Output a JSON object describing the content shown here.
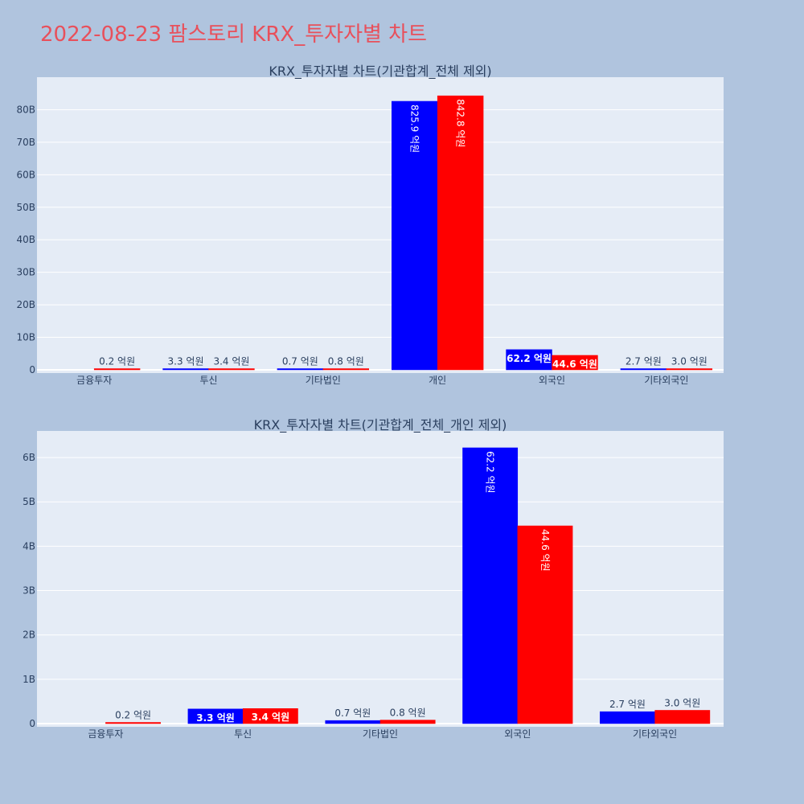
{
  "page": {
    "title": "2022-08-23 팜스토리 KRX_투자자별 차트",
    "title_color": "#e8505b",
    "background": "#b0c4de",
    "plot_background": "#e5ecf6"
  },
  "chart_data": [
    {
      "type": "bar",
      "title": "KRX_투자자별 차트(기관합계_전체 제외)",
      "categories": [
        "금융투자",
        "투신",
        "기타법인",
        "개인",
        "외국인",
        "기타외국인"
      ],
      "ylim": [
        0,
        90
      ],
      "yticks": [
        0,
        10,
        20,
        30,
        40,
        50,
        60,
        70,
        80
      ],
      "ytick_labels": [
        "0",
        "10B",
        "20B",
        "30B",
        "40B",
        "50B",
        "60B",
        "70B",
        "80B"
      ],
      "grid": true,
      "series": [
        {
          "color": "#0000ff",
          "values": [
            0,
            0.33,
            0.07,
            82.59,
            6.22,
            0.27
          ],
          "labels": [
            "",
            "3.3 억원",
            "0.7 억원",
            "825.9 억원",
            "62.2 억원",
            "2.7 억원"
          ]
        },
        {
          "color": "#ff0000",
          "values": [
            0.02,
            0.34,
            0.08,
            84.28,
            4.46,
            0.3
          ],
          "labels": [
            "0.2 억원",
            "3.4 억원",
            "0.8 억원",
            "842.8 억원",
            "44.6 억원",
            "3.0 억원"
          ]
        }
      ]
    },
    {
      "type": "bar",
      "title": "KRX_투자자별 차트(기관합계_전체_개인 제외)",
      "categories": [
        "금융투자",
        "투신",
        "기타법인",
        "외국인",
        "기타외국인"
      ],
      "ylim": [
        0,
        6.6
      ],
      "yticks": [
        0,
        1,
        2,
        3,
        4,
        5,
        6
      ],
      "ytick_labels": [
        "0",
        "1B",
        "2B",
        "3B",
        "4B",
        "5B",
        "6B"
      ],
      "grid": true,
      "series": [
        {
          "color": "#0000ff",
          "values": [
            0,
            0.33,
            0.07,
            6.22,
            0.27
          ],
          "labels": [
            "",
            "3.3 억원",
            "0.7 억원",
            "62.2 억원",
            "2.7 억원"
          ]
        },
        {
          "color": "#ff0000",
          "values": [
            0.02,
            0.34,
            0.08,
            4.46,
            0.3
          ],
          "labels": [
            "0.2 억원",
            "3.4 억원",
            "0.8 억원",
            "44.6 억원",
            "3.0 억원"
          ]
        }
      ]
    }
  ]
}
